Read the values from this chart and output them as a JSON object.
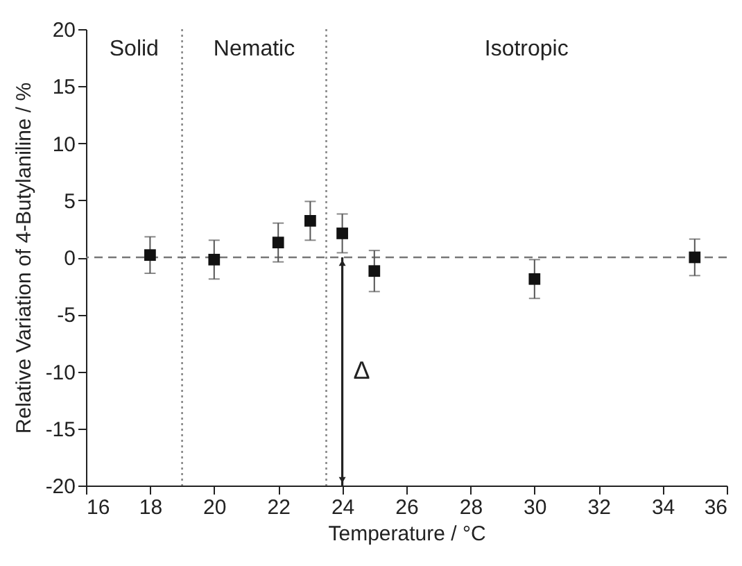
{
  "chart_data": {
    "type": "scatter",
    "xlabel": "Temperature / °C",
    "ylabel": "Relative Variation of 4-Butylaniline / %",
    "x": [
      18,
      20,
      22,
      23,
      24,
      25,
      30,
      35
    ],
    "series": [
      {
        "color": "#111111",
        "values": [
          0.2,
          -0.2,
          1.3,
          3.2,
          2.1,
          -1.2,
          -1.9,
          0.0
        ],
        "errors": [
          1.6,
          1.7,
          1.7,
          1.7,
          1.7,
          1.8,
          1.7,
          1.6
        ]
      }
    ],
    "marker": "square",
    "xlim": [
      16,
      36
    ],
    "xticks": [
      16,
      18,
      20,
      22,
      24,
      26,
      28,
      30,
      32,
      34,
      36
    ],
    "ylim": [
      -20,
      20
    ],
    "yticks": [
      -20,
      -15,
      -10,
      -5,
      0,
      5,
      10,
      15,
      20
    ],
    "grid": false,
    "ref_lines": [
      {
        "axis": "x",
        "value": 19,
        "color": "#888888",
        "line_style": "dotted"
      },
      {
        "axis": "x",
        "value": 23.5,
        "color": "#888888",
        "line_style": "dotted"
      },
      {
        "axis": "y",
        "value": 0,
        "color": "#777777",
        "line_style": "dashed"
      }
    ],
    "annotations": [
      "Solid",
      "Nematic",
      "Isotropic",
      "Δ"
    ]
  }
}
